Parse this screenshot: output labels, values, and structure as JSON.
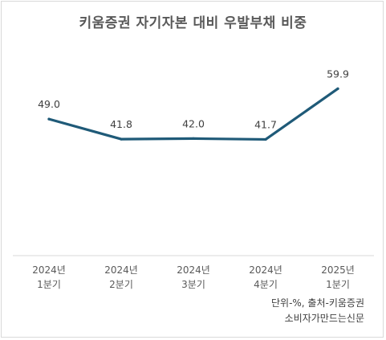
{
  "chart_data": {
    "type": "line",
    "title": "키움증권 자기자본 대비 우발부채 비중",
    "categories": [
      [
        "2024년",
        "1분기"
      ],
      [
        "2024년",
        "2분기"
      ],
      [
        "2024년",
        "3분기"
      ],
      [
        "2024년",
        "4분기"
      ],
      [
        "2025년",
        "1분기"
      ]
    ],
    "series": [
      {
        "values": [
          49.0,
          41.8,
          42.0,
          41.7,
          59.9
        ],
        "labels": [
          "49.0",
          "41.8",
          "42.0",
          "41.7",
          "59.9"
        ]
      }
    ],
    "ylim": [
      0,
      75
    ],
    "grid": false,
    "legend": "none",
    "line_color": "#1f5a78"
  },
  "notes": {
    "unit_source": "단위-%, 출처-키움증권",
    "credit": "소비자가만드는신문"
  }
}
